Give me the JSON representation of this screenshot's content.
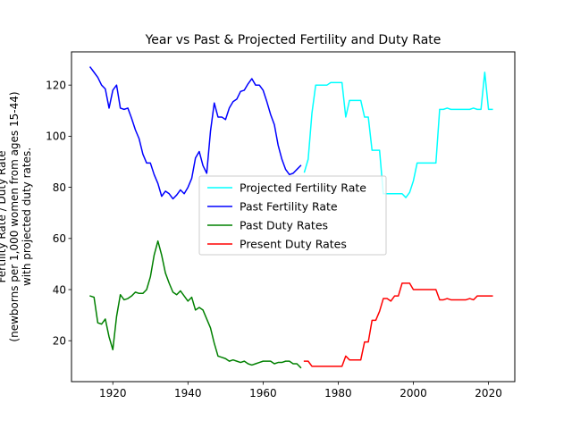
{
  "chart_data": {
    "type": "line",
    "title": "Year vs Past & Projected Fertility and Duty Rate",
    "ylabel_lines": [
      "Fertility Rate / Duty Rate",
      "(newborns per 1,000 women from ages 15-44)",
      "with projected duty rates."
    ],
    "xlabel": "",
    "xlim": [
      1909,
      2027
    ],
    "ylim": [
      4,
      133
    ],
    "x_ticks": [
      1920,
      1940,
      1960,
      1980,
      2000,
      2020
    ],
    "y_ticks": [
      20,
      40,
      60,
      80,
      100,
      120
    ],
    "grid": false,
    "legend_placement": "center",
    "series": [
      {
        "name": "Projected Fertility Rate",
        "color": "#00ffff",
        "x": [
          1971,
          1972,
          1973,
          1974,
          1975,
          1976,
          1977,
          1978,
          1979,
          1980,
          1981,
          1982,
          1983,
          1984,
          1985,
          1986,
          1987,
          1988,
          1989,
          1990,
          1991,
          1992,
          1993,
          1994,
          1995,
          1996,
          1997,
          1998,
          1999,
          2000,
          2001,
          2002,
          2003,
          2004,
          2005,
          2006,
          2007,
          2008,
          2009,
          2010,
          2011,
          2012,
          2013,
          2014,
          2015,
          2016,
          2017,
          2018,
          2019,
          2020,
          2021
        ],
        "y": [
          86,
          91,
          109,
          120,
          120,
          120,
          120,
          121,
          121,
          121,
          121,
          107.5,
          114,
          114,
          114,
          114,
          107.5,
          107.5,
          94.5,
          94.5,
          94.5,
          77.5,
          77.5,
          77.5,
          77.5,
          77.5,
          77.5,
          76,
          78,
          82.5,
          89.5,
          89.5,
          89.5,
          89.5,
          89.5,
          89.5,
          110.5,
          110.5,
          111,
          110.5,
          110.5,
          110.5,
          110.5,
          110.5,
          110.5,
          111,
          110.5,
          110.5,
          125,
          110.5,
          110.5
        ]
      },
      {
        "name": "Past Fertility Rate",
        "color": "#0000ff",
        "x": [
          1914,
          1915,
          1916,
          1917,
          1918,
          1919,
          1920,
          1921,
          1922,
          1923,
          1924,
          1925,
          1926,
          1927,
          1928,
          1929,
          1930,
          1931,
          1932,
          1933,
          1934,
          1935,
          1936,
          1937,
          1938,
          1939,
          1940,
          1941,
          1942,
          1943,
          1944,
          1945,
          1946,
          1947,
          1948,
          1949,
          1950,
          1951,
          1952,
          1953,
          1954,
          1955,
          1956,
          1957,
          1958,
          1959,
          1960,
          1961,
          1962,
          1963,
          1964,
          1965,
          1966,
          1967,
          1968,
          1969,
          1970
        ],
        "y": [
          127,
          125,
          123,
          120,
          118.5,
          111,
          118,
          120,
          111,
          110.5,
          111,
          107,
          102.5,
          99,
          93,
          89.5,
          89.5,
          85,
          81.5,
          76.5,
          78.5,
          77.5,
          75.5,
          77,
          79,
          77.5,
          80,
          83.5,
          91.5,
          94,
          88.5,
          85.5,
          102,
          113,
          107.5,
          107.5,
          106.5,
          111,
          113.5,
          114.5,
          117.5,
          118,
          120.5,
          122.5,
          120,
          120,
          118,
          113.5,
          108.5,
          104.5,
          96.5,
          91,
          87,
          85,
          85.5,
          87,
          88.5
        ]
      },
      {
        "name": "Past Duty Rates",
        "color": "#008000",
        "x": [
          1914,
          1915,
          1916,
          1917,
          1918,
          1919,
          1920,
          1921,
          1922,
          1923,
          1924,
          1925,
          1926,
          1927,
          1928,
          1929,
          1930,
          1931,
          1932,
          1933,
          1934,
          1935,
          1936,
          1937,
          1938,
          1939,
          1940,
          1941,
          1942,
          1943,
          1944,
          1945,
          1946,
          1947,
          1948,
          1949,
          1950,
          1951,
          1952,
          1953,
          1954,
          1955,
          1956,
          1957,
          1958,
          1959,
          1960,
          1961,
          1962,
          1963,
          1964,
          1965,
          1966,
          1967,
          1968,
          1969,
          1970
        ],
        "y": [
          37.5,
          37,
          27,
          26.5,
          28.5,
          21.5,
          16.5,
          29.5,
          38,
          36,
          36.5,
          37.5,
          39,
          38.5,
          38.5,
          40,
          45,
          53.5,
          59,
          53.5,
          46.5,
          42.5,
          39,
          38,
          39.5,
          37.5,
          35.5,
          37,
          32,
          33,
          32,
          28.5,
          25,
          19,
          14,
          13.5,
          13,
          12,
          12.5,
          12,
          11.5,
          12,
          11,
          10.5,
          11,
          11.5,
          12,
          12,
          12,
          11,
          11.5,
          11.5,
          12,
          12,
          11,
          11,
          9.5
        ]
      },
      {
        "name": "Present Duty Rates",
        "color": "#ff0000",
        "x": [
          1971,
          1972,
          1973,
          1974,
          1975,
          1976,
          1977,
          1978,
          1979,
          1980,
          1981,
          1982,
          1983,
          1984,
          1985,
          1986,
          1987,
          1988,
          1989,
          1990,
          1991,
          1992,
          1993,
          1994,
          1995,
          1996,
          1997,
          1998,
          1999,
          2000,
          2001,
          2002,
          2003,
          2004,
          2005,
          2006,
          2007,
          2008,
          2009,
          2010,
          2011,
          2012,
          2013,
          2014,
          2015,
          2016,
          2017,
          2018,
          2019,
          2020,
          2021
        ],
        "y": [
          12,
          12,
          10,
          10,
          10,
          10,
          10,
          10,
          10,
          10,
          10,
          14,
          12.5,
          12.5,
          12.5,
          12.5,
          19.5,
          19.5,
          28,
          28,
          31.5,
          36.5,
          36.5,
          35.5,
          37.5,
          37.5,
          42.5,
          42.5,
          42.5,
          40,
          40,
          40,
          40,
          40,
          40,
          40,
          36,
          36,
          36.5,
          36,
          36,
          36,
          36,
          36,
          36.5,
          36,
          37.5,
          37.5,
          37.5,
          37.5,
          37.5
        ]
      }
    ]
  }
}
